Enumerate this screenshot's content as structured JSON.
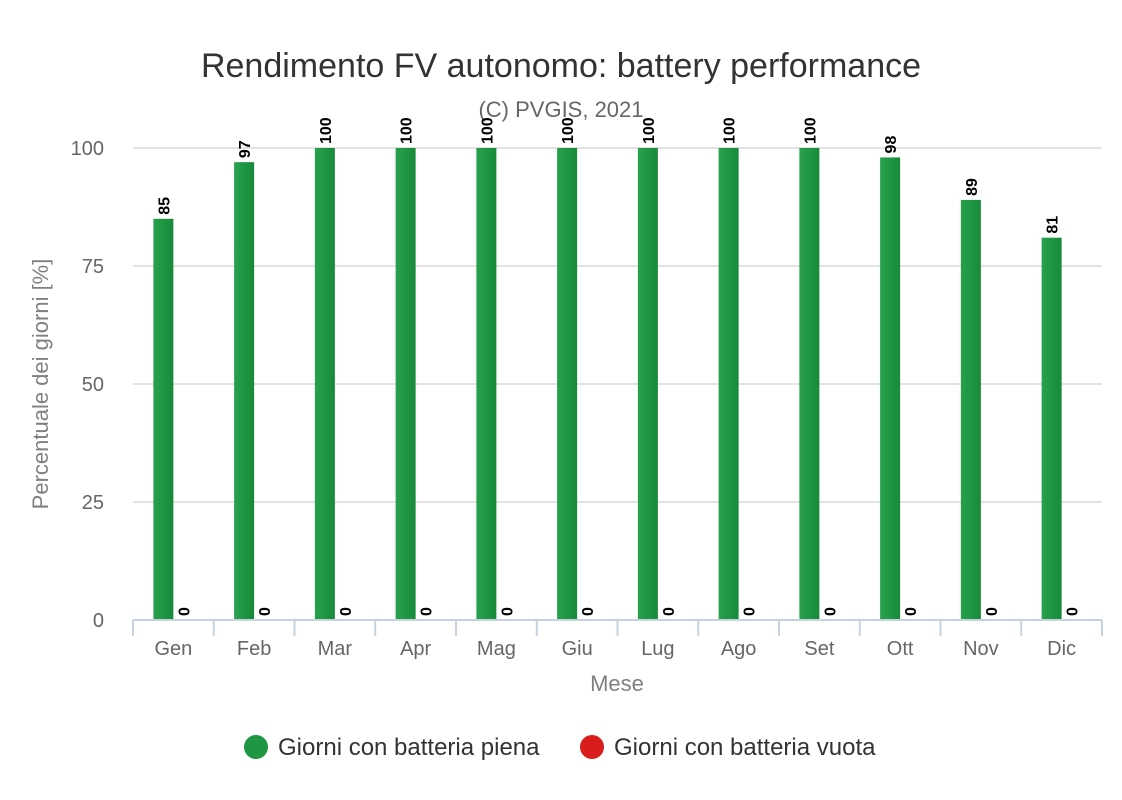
{
  "chart_data": {
    "type": "bar",
    "title": "Rendimento FV autonomo: battery performance",
    "subtitle": "(C) PVGIS, 2021",
    "xlabel": "Mese",
    "ylabel": "Percentuale dei giorni [%]",
    "categories": [
      "Gen",
      "Feb",
      "Mar",
      "Apr",
      "Mag",
      "Giu",
      "Lug",
      "Ago",
      "Set",
      "Ott",
      "Nov",
      "Dic"
    ],
    "ylim": [
      0,
      100
    ],
    "yticks": [
      0,
      25,
      50,
      75,
      100
    ],
    "grid": true,
    "legend_position": "bottom-center",
    "series": [
      {
        "name": "Giorni con batteria piena",
        "color": "#1e9642",
        "values": [
          85,
          97,
          100,
          100,
          100,
          100,
          100,
          100,
          100,
          98,
          89,
          81
        ]
      },
      {
        "name": "Giorni con batteria vuota",
        "color": "#d91c1c",
        "values": [
          0,
          0,
          0,
          0,
          0,
          0,
          0,
          0,
          0,
          0,
          0,
          0
        ]
      }
    ]
  }
}
